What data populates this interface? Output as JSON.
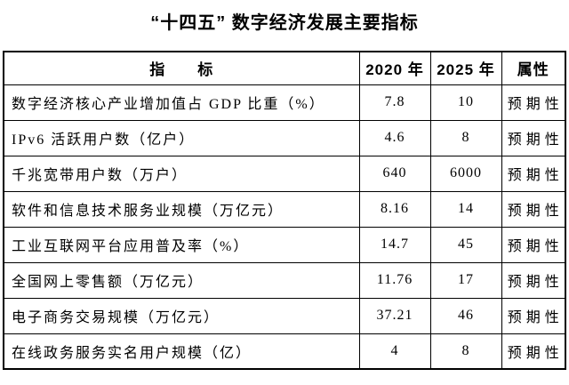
{
  "title": "“十四五” 数字经济发展主要指标",
  "colors": {
    "background": "#ffffff",
    "text": "#000000",
    "border": "#000000"
  },
  "table": {
    "headers": [
      "指　　标",
      "2020 年",
      "2025 年",
      "属性"
    ],
    "rows": [
      {
        "indicator": "数字经济核心产业增加值占 GDP 比重（%）",
        "y2020": "7.8",
        "y2025": "10",
        "attr": "预期性"
      },
      {
        "indicator": "IPv6 活跃用户数（亿户）",
        "y2020": "4.6",
        "y2025": "8",
        "attr": "预期性"
      },
      {
        "indicator": "千兆宽带用户数（万户）",
        "y2020": "640",
        "y2025": "6000",
        "attr": "预期性"
      },
      {
        "indicator": "软件和信息技术服务业规模（万亿元）",
        "y2020": "8.16",
        "y2025": "14",
        "attr": "预期性"
      },
      {
        "indicator": "工业互联网平台应用普及率（%）",
        "y2020": "14.7",
        "y2025": "45",
        "attr": "预期性"
      },
      {
        "indicator": "全国网上零售额（万亿元）",
        "y2020": "11.76",
        "y2025": "17",
        "attr": "预期性"
      },
      {
        "indicator": "电子商务交易规模（万亿元）",
        "y2020": "37.21",
        "y2025": "46",
        "attr": "预期性"
      },
      {
        "indicator": "在线政务服务实名用户规模（亿）",
        "y2020": "4",
        "y2025": "8",
        "attr": "预期性"
      }
    ]
  }
}
